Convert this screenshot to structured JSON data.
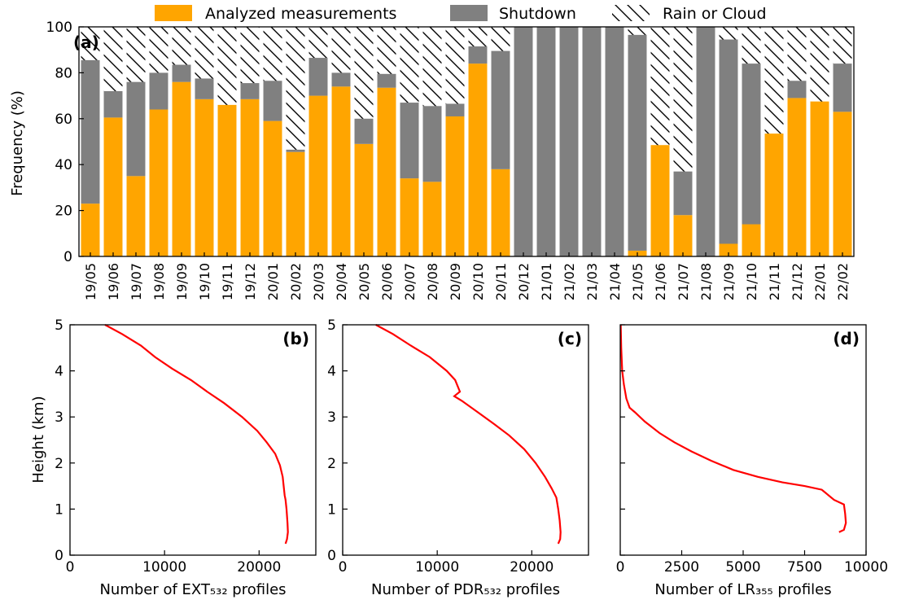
{
  "chart_data": [
    {
      "type": "bar",
      "stacked": true,
      "panel_label": "(a)",
      "ylabel": "Frequency (%)",
      "ylim": [
        0,
        100
      ],
      "yticks": [
        0,
        20,
        40,
        60,
        80,
        100
      ],
      "legend": {
        "placement": "top, above plot",
        "entries": [
          "Analyzed measurements",
          "Shutdown",
          "Rain or Cloud"
        ]
      },
      "colors": {
        "analyzed": "#FFA500",
        "shutdown": "#808080",
        "rain": "#000000"
      },
      "categories": [
        "19/05",
        "19/06",
        "19/07",
        "19/08",
        "19/09",
        "19/10",
        "19/11",
        "19/12",
        "20/01",
        "20/02",
        "20/03",
        "20/04",
        "20/05",
        "20/06",
        "20/07",
        "20/08",
        "20/09",
        "20/10",
        "20/11",
        "20/12",
        "21/01",
        "21/02",
        "21/03",
        "21/04",
        "21/05",
        "21/06",
        "21/07",
        "21/08",
        "21/09",
        "21/10",
        "21/11",
        "21/12",
        "22/01",
        "22/02"
      ],
      "series": [
        {
          "name": "Analyzed measurements",
          "values": [
            23,
            60.5,
            35,
            64,
            76,
            68.5,
            66,
            68.5,
            59,
            45.5,
            70,
            74,
            49,
            73.5,
            34,
            32.5,
            61,
            84,
            38,
            0,
            0,
            0,
            0,
            0,
            2.5,
            48.5,
            18,
            0,
            5.5,
            14,
            53.5,
            69,
            67.5,
            63
          ]
        },
        {
          "name": "Shutdown",
          "values": [
            62.5,
            11.5,
            41,
            16,
            7.5,
            9,
            0,
            7,
            17.5,
            1,
            16.5,
            6,
            11,
            6,
            33,
            33,
            5.5,
            7.5,
            51.5,
            100,
            100,
            100,
            100,
            100,
            94,
            0,
            19,
            100,
            89,
            70,
            0,
            7.5,
            0,
            21
          ]
        },
        {
          "name": "Rain or Cloud",
          "values": [
            14.5,
            28,
            24,
            20,
            16.5,
            22.5,
            34,
            24.5,
            23.5,
            53.5,
            13.5,
            20,
            40,
            20.5,
            33,
            34.5,
            33.5,
            8.5,
            10.5,
            0,
            0,
            0,
            0,
            0,
            3.5,
            51.5,
            63,
            0,
            5.5,
            16,
            46.5,
            23.5,
            32.5,
            16
          ]
        }
      ]
    },
    {
      "type": "line",
      "panel_label": "(b)",
      "xlabel": "Number of EXT₅₃₂ profiles",
      "ylabel": "Height (km)",
      "xlim": [
        0,
        26000
      ],
      "ylim": [
        0,
        5
      ],
      "xticks": [
        0,
        10000,
        20000
      ],
      "yticks": [
        0,
        1,
        2,
        3,
        4,
        5
      ],
      "line_color": "#FF0000",
      "series": [
        {
          "x": [
            3700,
            5500,
            7500,
            9000,
            10800,
            12800,
            14500,
            16300,
            18200,
            19800,
            20800,
            21700,
            22200,
            22500,
            22600,
            22700,
            22800,
            22900,
            23000,
            23050,
            22950,
            22800
          ],
          "y": [
            5,
            4.8,
            4.55,
            4.3,
            4.05,
            3.8,
            3.55,
            3.3,
            3.0,
            2.7,
            2.45,
            2.2,
            1.95,
            1.7,
            1.5,
            1.3,
            1.2,
            1.0,
            0.7,
            0.5,
            0.35,
            0.25
          ]
        }
      ]
    },
    {
      "type": "line",
      "panel_label": "(c)",
      "xlabel": "Number of PDR₅₃₂ profiles",
      "xlim": [
        0,
        26000
      ],
      "ylim": [
        0,
        5
      ],
      "xticks": [
        0,
        10000,
        20000
      ],
      "yticks": [
        0,
        1,
        2,
        3,
        4,
        5
      ],
      "line_color": "#FF0000",
      "series": [
        {
          "x": [
            3500,
            5300,
            7200,
            9200,
            11000,
            11900,
            12400,
            11800,
            12600,
            14300,
            16000,
            17600,
            19200,
            20400,
            21400,
            22100,
            22600,
            22800,
            22950,
            23050,
            23000,
            22800
          ],
          "y": [
            5,
            4.8,
            4.55,
            4.3,
            4.0,
            3.8,
            3.55,
            3.45,
            3.35,
            3.1,
            2.85,
            2.6,
            2.3,
            2.0,
            1.7,
            1.45,
            1.25,
            1.0,
            0.75,
            0.5,
            0.35,
            0.25
          ]
        }
      ]
    },
    {
      "type": "line",
      "panel_label": "(d)",
      "xlabel": "Number of LR₃₅₅ profiles",
      "xlim": [
        0,
        10000
      ],
      "ylim": [
        0,
        5
      ],
      "xticks": [
        0,
        2500,
        5000,
        7500,
        10000
      ],
      "yticks": [
        0,
        1,
        2,
        3,
        4,
        5
      ],
      "line_color": "#FF0000",
      "series": [
        {
          "x": [
            20,
            40,
            80,
            150,
            250,
            380,
            600,
            1000,
            1600,
            2200,
            2900,
            3700,
            4600,
            5600,
            6600,
            7500,
            8200,
            8700,
            9100,
            9150,
            9180,
            9100,
            8900
          ],
          "y": [
            5,
            4.5,
            4.0,
            3.7,
            3.4,
            3.2,
            3.1,
            2.9,
            2.65,
            2.45,
            2.25,
            2.05,
            1.85,
            1.7,
            1.58,
            1.5,
            1.42,
            1.2,
            1.1,
            0.9,
            0.7,
            0.55,
            0.5
          ]
        }
      ]
    }
  ]
}
